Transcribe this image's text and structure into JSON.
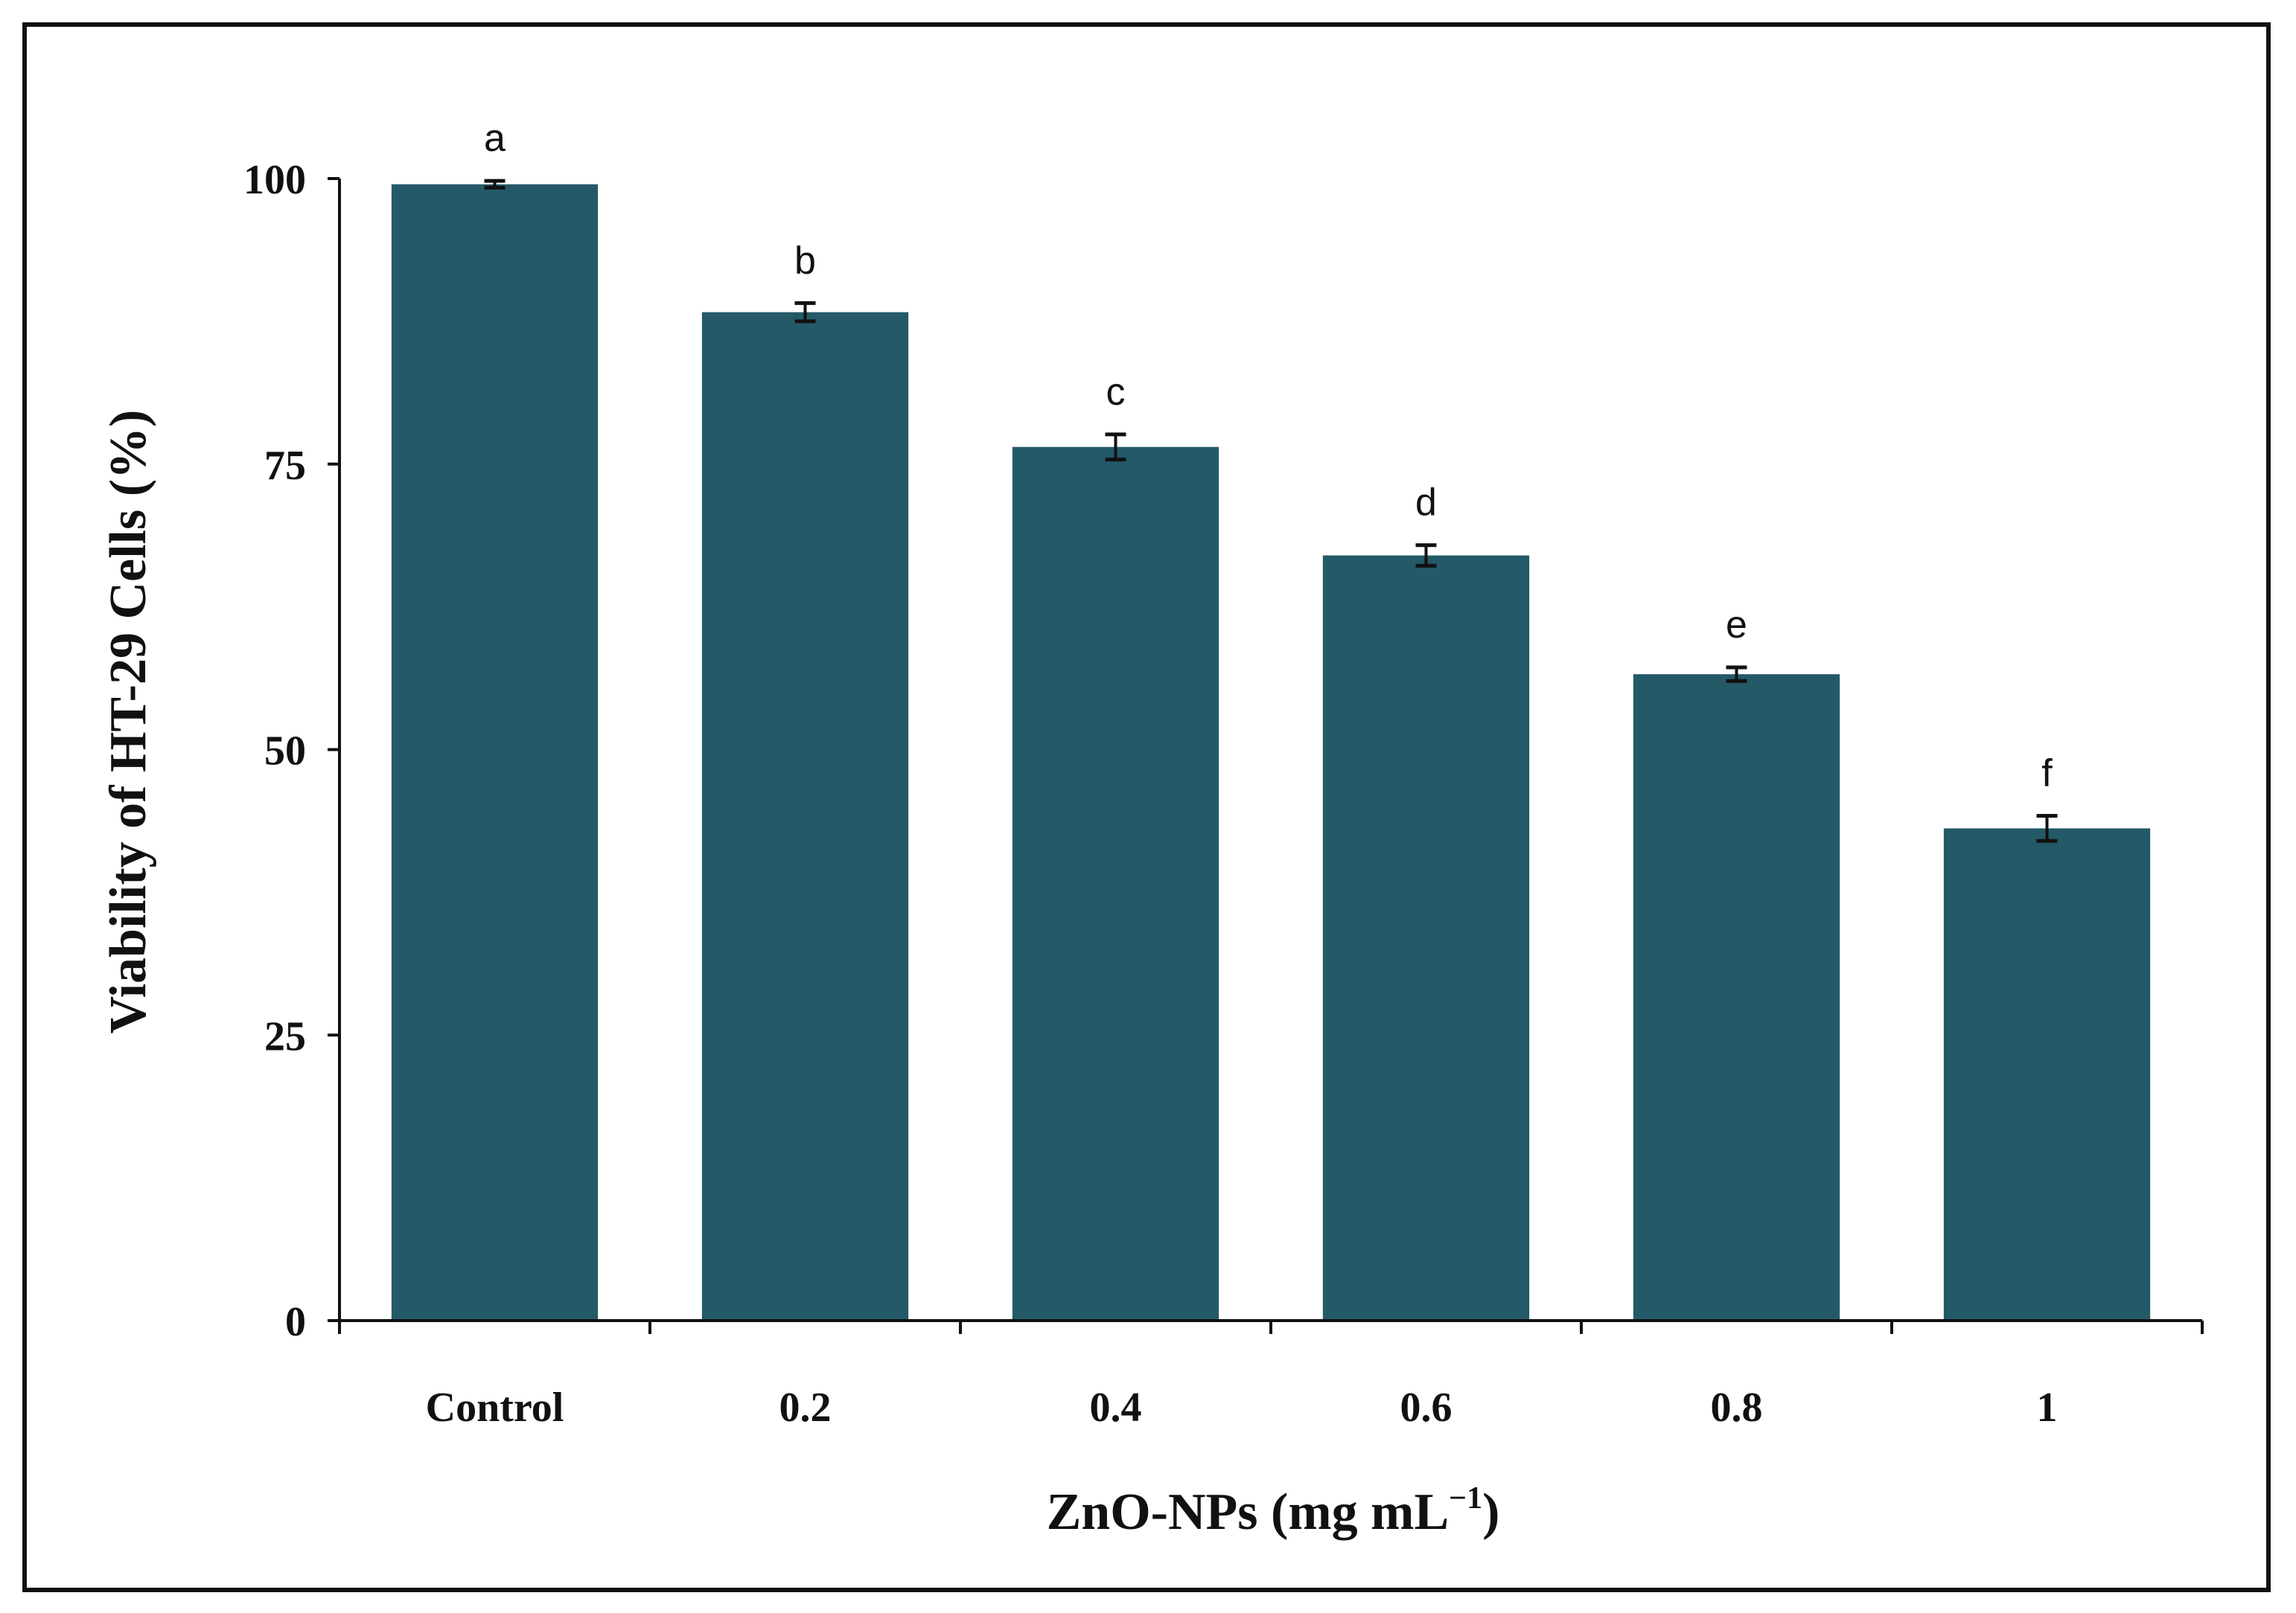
{
  "chart_data": {
    "type": "bar",
    "title": "",
    "xlabel": "ZnO-NPs (mg mL",
    "xlabel_superscript": "−1",
    "xlabel_suffix": ")",
    "ylabel": "Viability of HT-29 Cells (%)",
    "categories": [
      "Control",
      "0.2",
      "0.4",
      "0.6",
      "0.8",
      "1"
    ],
    "series": [
      {
        "values": [
          99.5,
          88.3,
          76.5,
          67.0,
          56.6,
          43.1
        ],
        "errors": [
          0.3,
          0.8,
          1.1,
          0.9,
          0.6,
          1.1
        ],
        "significance_letters": [
          "a",
          "b",
          "c",
          "d",
          "e",
          "f"
        ]
      }
    ],
    "ylim": [
      0,
      100
    ],
    "yticks": [
      0,
      25,
      50,
      75,
      100
    ],
    "grid": false,
    "bar_color": "#245968"
  }
}
